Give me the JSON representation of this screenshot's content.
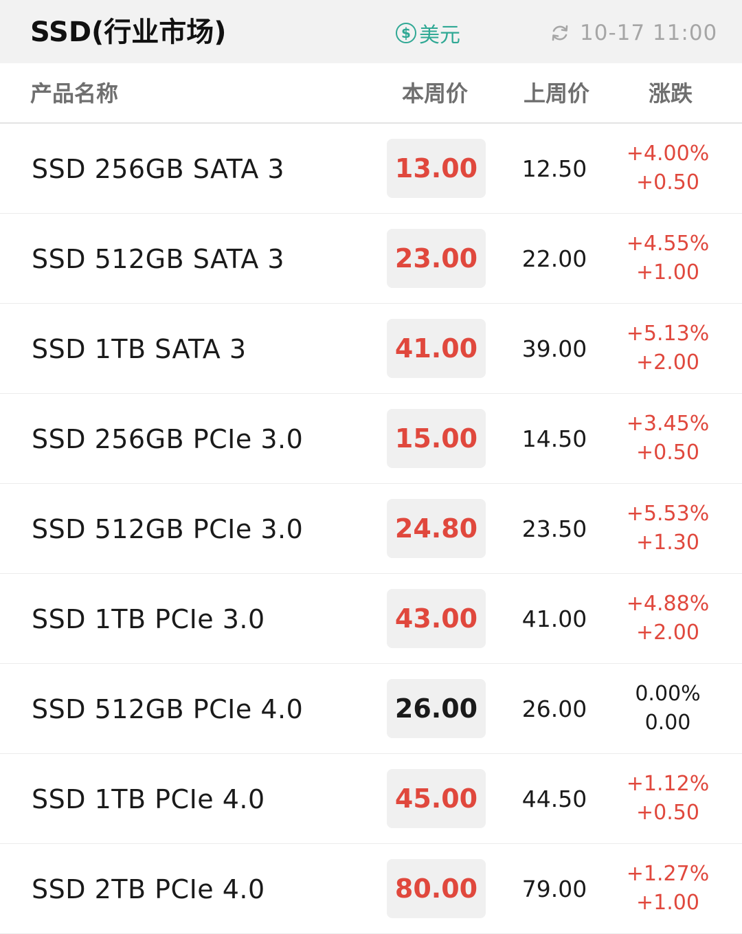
{
  "header": {
    "title": "SSD(行业市场)",
    "currency_label": "美元",
    "currency_icon": "dollar-coin-icon",
    "refresh_icon": "refresh-icon",
    "updated_time": "10-17 11:00"
  },
  "columns": {
    "name": "产品名称",
    "this_week": "本周价",
    "last_week": "上周价",
    "change": "涨跌"
  },
  "colors": {
    "up": "#e0483d",
    "flat": "#1a1a1a",
    "accent": "#2fa894"
  },
  "rows": [
    {
      "name": "SSD 256GB SATA 3",
      "this_week": "13.00",
      "last_week": "12.50",
      "change_pct": "+4.00%",
      "change_abs": "+0.50",
      "direction": "up"
    },
    {
      "name": "SSD 512GB SATA 3",
      "this_week": "23.00",
      "last_week": "22.00",
      "change_pct": "+4.55%",
      "change_abs": "+1.00",
      "direction": "up"
    },
    {
      "name": "SSD 1TB SATA 3",
      "this_week": "41.00",
      "last_week": "39.00",
      "change_pct": "+5.13%",
      "change_abs": "+2.00",
      "direction": "up"
    },
    {
      "name": "SSD 256GB PCIe 3.0",
      "this_week": "15.00",
      "last_week": "14.50",
      "change_pct": "+3.45%",
      "change_abs": "+0.50",
      "direction": "up"
    },
    {
      "name": "SSD 512GB PCIe 3.0",
      "this_week": "24.80",
      "last_week": "23.50",
      "change_pct": "+5.53%",
      "change_abs": "+1.30",
      "direction": "up"
    },
    {
      "name": "SSD 1TB PCIe 3.0",
      "this_week": "43.00",
      "last_week": "41.00",
      "change_pct": "+4.88%",
      "change_abs": "+2.00",
      "direction": "up"
    },
    {
      "name": "SSD 512GB PCIe 4.0",
      "this_week": "26.00",
      "last_week": "26.00",
      "change_pct": "0.00%",
      "change_abs": "0.00",
      "direction": "flat"
    },
    {
      "name": "SSD 1TB PCIe 4.0",
      "this_week": "45.00",
      "last_week": "44.50",
      "change_pct": "+1.12%",
      "change_abs": "+0.50",
      "direction": "up"
    },
    {
      "name": "SSD 2TB PCIe 4.0",
      "this_week": "80.00",
      "last_week": "79.00",
      "change_pct": "+1.27%",
      "change_abs": "+1.00",
      "direction": "up"
    }
  ]
}
